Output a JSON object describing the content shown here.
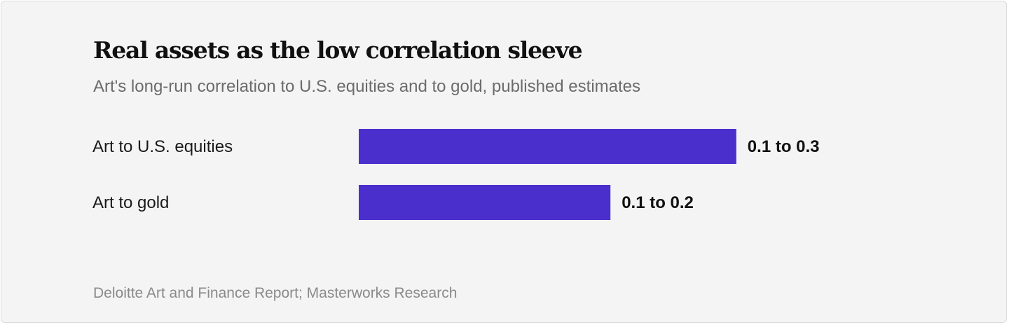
{
  "chart_data": {
    "type": "bar",
    "orientation": "horizontal",
    "title": "Real assets as the low correlation sleeve",
    "subtitle": "Art's long-run correlation to U.S. equities and to gold, published estimates",
    "categories": [
      "Art to U.S. equities",
      "Art to gold"
    ],
    "values": [
      0.3,
      0.2
    ],
    "value_labels": [
      "0.1 to 0.3",
      "0.1 to 0.2"
    ],
    "xlim": [
      0,
      0.5
    ],
    "grid": false,
    "bar_color": "#4a2fcc",
    "source": "Deloitte Art and Finance Report; Masterworks Research"
  }
}
